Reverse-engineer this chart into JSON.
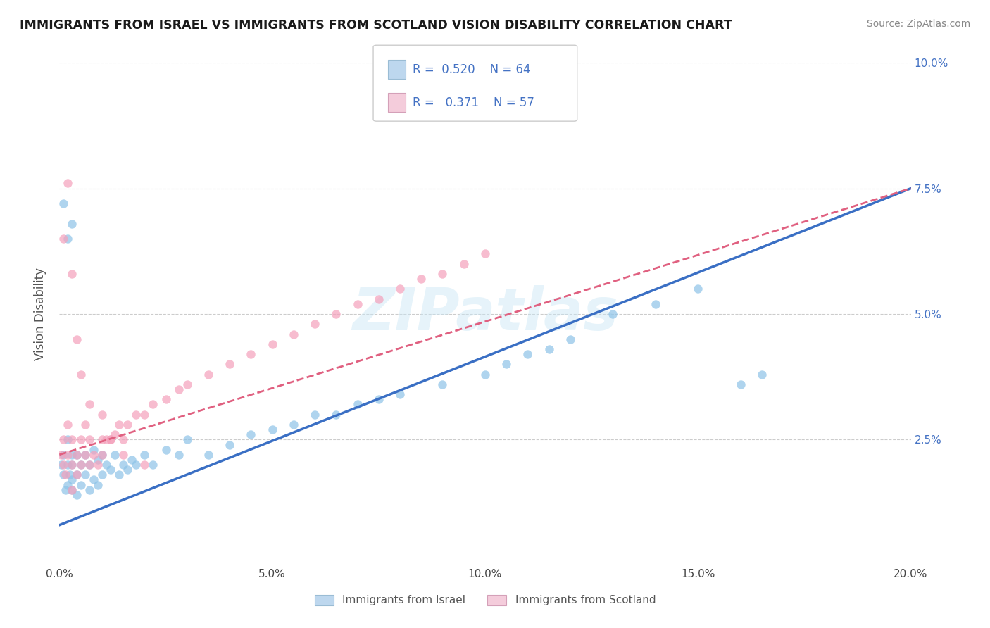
{
  "title": "IMMIGRANTS FROM ISRAEL VS IMMIGRANTS FROM SCOTLAND VISION DISABILITY CORRELATION CHART",
  "source": "Source: ZipAtlas.com",
  "ylabel": "Vision Disability",
  "xlim": [
    0.0,
    0.2
  ],
  "ylim": [
    0.0,
    0.1
  ],
  "xticks": [
    0.0,
    0.05,
    0.1,
    0.15,
    0.2
  ],
  "xtick_labels": [
    "0.0%",
    "5.0%",
    "10.0%",
    "15.0%",
    "20.0%"
  ],
  "yticks": [
    0.0,
    0.025,
    0.05,
    0.075,
    0.1
  ],
  "ytick_labels": [
    "",
    "2.5%",
    "5.0%",
    "7.5%",
    "10.0%"
  ],
  "israel_R": 0.52,
  "israel_N": 64,
  "scotland_R": 0.371,
  "scotland_N": 57,
  "israel_color": "#8DC3E8",
  "scotland_color": "#F4A0BB",
  "israel_line_color": "#3A6FC4",
  "scotland_line_color": "#E06080",
  "legend_israel_fill": "#BDD7EE",
  "legend_scotland_fill": "#F4CCDB",
  "watermark": "ZIPatlas",
  "israel_line_x0": 0.0,
  "israel_line_y0": 0.008,
  "israel_line_x1": 0.2,
  "israel_line_y1": 0.075,
  "scotland_line_x0": 0.0,
  "scotland_line_y0": 0.022,
  "scotland_line_x1": 0.2,
  "scotland_line_y1": 0.075,
  "israel_points_x": [
    0.0005,
    0.001,
    0.001,
    0.0015,
    0.002,
    0.002,
    0.002,
    0.0025,
    0.003,
    0.003,
    0.003,
    0.003,
    0.004,
    0.004,
    0.004,
    0.005,
    0.005,
    0.006,
    0.006,
    0.007,
    0.007,
    0.008,
    0.008,
    0.009,
    0.009,
    0.01,
    0.01,
    0.011,
    0.012,
    0.013,
    0.014,
    0.015,
    0.016,
    0.017,
    0.018,
    0.02,
    0.022,
    0.025,
    0.028,
    0.03,
    0.035,
    0.04,
    0.045,
    0.05,
    0.055,
    0.06,
    0.065,
    0.07,
    0.075,
    0.08,
    0.09,
    0.1,
    0.105,
    0.11,
    0.115,
    0.12,
    0.13,
    0.14,
    0.15,
    0.001,
    0.002,
    0.003,
    0.16,
    0.165
  ],
  "israel_points_y": [
    0.02,
    0.018,
    0.022,
    0.015,
    0.02,
    0.016,
    0.025,
    0.018,
    0.017,
    0.02,
    0.022,
    0.015,
    0.018,
    0.022,
    0.014,
    0.016,
    0.02,
    0.018,
    0.022,
    0.015,
    0.02,
    0.017,
    0.023,
    0.016,
    0.021,
    0.018,
    0.022,
    0.02,
    0.019,
    0.022,
    0.018,
    0.02,
    0.019,
    0.021,
    0.02,
    0.022,
    0.02,
    0.023,
    0.022,
    0.025,
    0.022,
    0.024,
    0.026,
    0.027,
    0.028,
    0.03,
    0.03,
    0.032,
    0.033,
    0.034,
    0.036,
    0.038,
    0.04,
    0.042,
    0.043,
    0.045,
    0.05,
    0.052,
    0.055,
    0.072,
    0.065,
    0.068,
    0.036,
    0.038
  ],
  "scotland_points_x": [
    0.0005,
    0.001,
    0.001,
    0.0015,
    0.002,
    0.002,
    0.003,
    0.003,
    0.003,
    0.004,
    0.004,
    0.005,
    0.005,
    0.006,
    0.006,
    0.007,
    0.007,
    0.008,
    0.009,
    0.01,
    0.01,
    0.011,
    0.012,
    0.013,
    0.014,
    0.015,
    0.016,
    0.018,
    0.02,
    0.022,
    0.025,
    0.028,
    0.03,
    0.035,
    0.04,
    0.045,
    0.05,
    0.055,
    0.06,
    0.065,
    0.07,
    0.075,
    0.08,
    0.085,
    0.09,
    0.095,
    0.1,
    0.001,
    0.002,
    0.003,
    0.004,
    0.005,
    0.007,
    0.01,
    0.012,
    0.015,
    0.02
  ],
  "scotland_points_y": [
    0.022,
    0.02,
    0.025,
    0.018,
    0.022,
    0.028,
    0.02,
    0.025,
    0.015,
    0.022,
    0.018,
    0.025,
    0.02,
    0.022,
    0.028,
    0.02,
    0.025,
    0.022,
    0.02,
    0.025,
    0.022,
    0.025,
    0.025,
    0.026,
    0.028,
    0.025,
    0.028,
    0.03,
    0.03,
    0.032,
    0.033,
    0.035,
    0.036,
    0.038,
    0.04,
    0.042,
    0.044,
    0.046,
    0.048,
    0.05,
    0.052,
    0.053,
    0.055,
    0.057,
    0.058,
    0.06,
    0.062,
    0.065,
    0.076,
    0.058,
    0.045,
    0.038,
    0.032,
    0.03,
    0.025,
    0.022,
    0.02
  ]
}
